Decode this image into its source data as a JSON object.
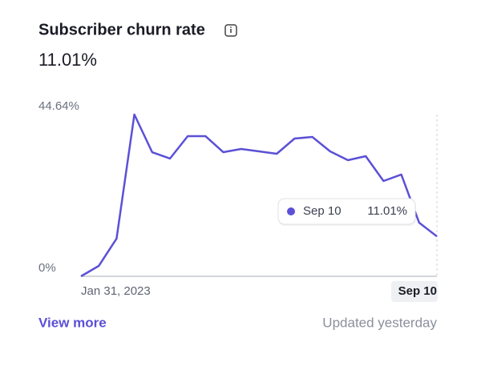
{
  "chart_data": {
    "type": "line",
    "title": "Subscriber churn rate",
    "headline_value": "11.01%",
    "categories": [
      "Jan 31, 2023",
      null,
      null,
      null,
      null,
      null,
      null,
      null,
      null,
      null,
      null,
      null,
      null,
      null,
      null,
      null,
      null,
      null,
      null,
      null,
      "Sep 10"
    ],
    "series": [
      {
        "color": "#5b50d6",
        "values": [
          0,
          2.87,
          10.39,
          44.64,
          34.25,
          32.49,
          38.67,
          38.67,
          34.25,
          35.14,
          34.47,
          33.81,
          38.01,
          38.45,
          34.47,
          32.04,
          33.15,
          26.3,
          28.07,
          14.81,
          11.01
        ],
        "value_labels": [
          null,
          null,
          null,
          null,
          null,
          null,
          null,
          null,
          null,
          null,
          null,
          null,
          null,
          null,
          null,
          null,
          null,
          null,
          null,
          null,
          "11.01%"
        ]
      }
    ],
    "ylim": [
      0,
      44.64
    ],
    "yticks": [
      {
        "value": 0,
        "label": "0%"
      },
      {
        "value": 44.64,
        "label": "44.64%"
      }
    ],
    "link": "View more",
    "footnote": "Updated yesterday"
  }
}
